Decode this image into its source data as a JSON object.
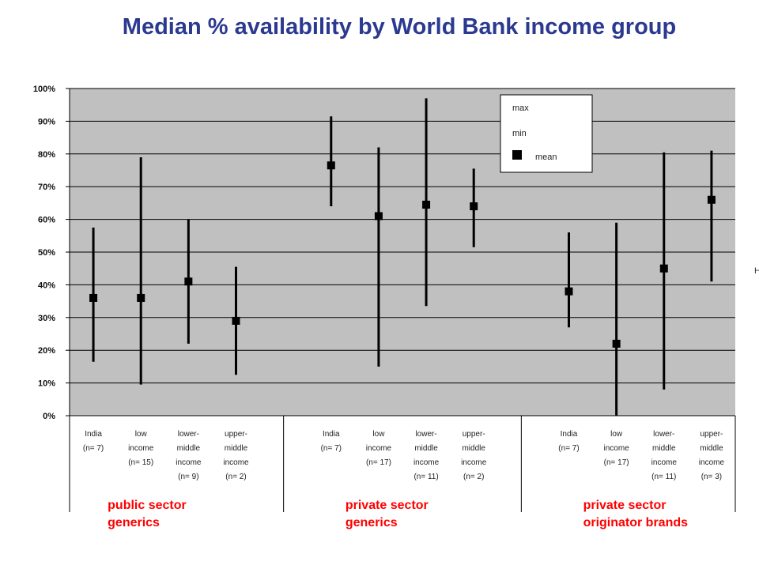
{
  "chart_data": {
    "type": "range",
    "title": "Median % availability by World Bank income group",
    "ylim": [
      0,
      100
    ],
    "yticks": [
      "0%",
      "10%",
      "20%",
      "30%",
      "40%",
      "50%",
      "60%",
      "70%",
      "80%",
      "90%",
      "100%"
    ],
    "legend": {
      "position": "top-right",
      "items": [
        "max",
        "min",
        "mean"
      ]
    },
    "grid": true,
    "groups": [
      {
        "label_lines": [
          "public sector",
          "generics"
        ],
        "categories": [
          {
            "lines": [
              "India",
              "(n= 7)"
            ],
            "max": 57.5,
            "min": 16.5,
            "mean": 36
          },
          {
            "lines": [
              "low",
              "income",
              "(n= 15)"
            ],
            "max": 79,
            "min": 9.5,
            "mean": 36
          },
          {
            "lines": [
              "lower-",
              "middle",
              "income",
              "(n= 9)"
            ],
            "max": 60,
            "min": 22,
            "mean": 41
          },
          {
            "lines": [
              "upper-",
              "middle",
              "income",
              "(n= 2)"
            ],
            "max": 45.5,
            "min": 12.5,
            "mean": 29
          }
        ]
      },
      {
        "label_lines": [
          "private sector",
          "generics"
        ],
        "categories": [
          {
            "lines": [
              "India",
              "(n= 7)"
            ],
            "max": 91.5,
            "min": 64,
            "mean": 76.5
          },
          {
            "lines": [
              "low",
              "income",
              "(n= 17)"
            ],
            "max": 82,
            "min": 15,
            "mean": 61
          },
          {
            "lines": [
              "lower-",
              "middle",
              "income",
              "(n= 11)"
            ],
            "max": 97,
            "min": 33.5,
            "mean": 64.5
          },
          {
            "lines": [
              "upper-",
              "middle",
              "income",
              "(n= 2)"
            ],
            "max": 75.5,
            "min": 51.5,
            "mean": 64
          }
        ]
      },
      {
        "label_lines": [
          "private sector",
          "originator brands"
        ],
        "categories": [
          {
            "lines": [
              "India",
              "(n= 7)"
            ],
            "max": 56,
            "min": 27,
            "mean": 38
          },
          {
            "lines": [
              "low",
              "income",
              "(n= 17)"
            ],
            "max": 59,
            "min": 0,
            "mean": 22
          },
          {
            "lines": [
              "lower-",
              "middle",
              "income",
              "(n= 11)"
            ],
            "max": 80.5,
            "min": 8,
            "mean": 45
          },
          {
            "lines": [
              "upper-",
              "middle",
              "income",
              "(n= 3)"
            ],
            "max": 81,
            "min": 41,
            "mean": 66
          }
        ]
      }
    ]
  },
  "edge_text": "H",
  "colors": {
    "title": "#2b3990",
    "plot_bg": "#c0c0c0",
    "group_label": "#ff0000",
    "marks": "#000000"
  }
}
